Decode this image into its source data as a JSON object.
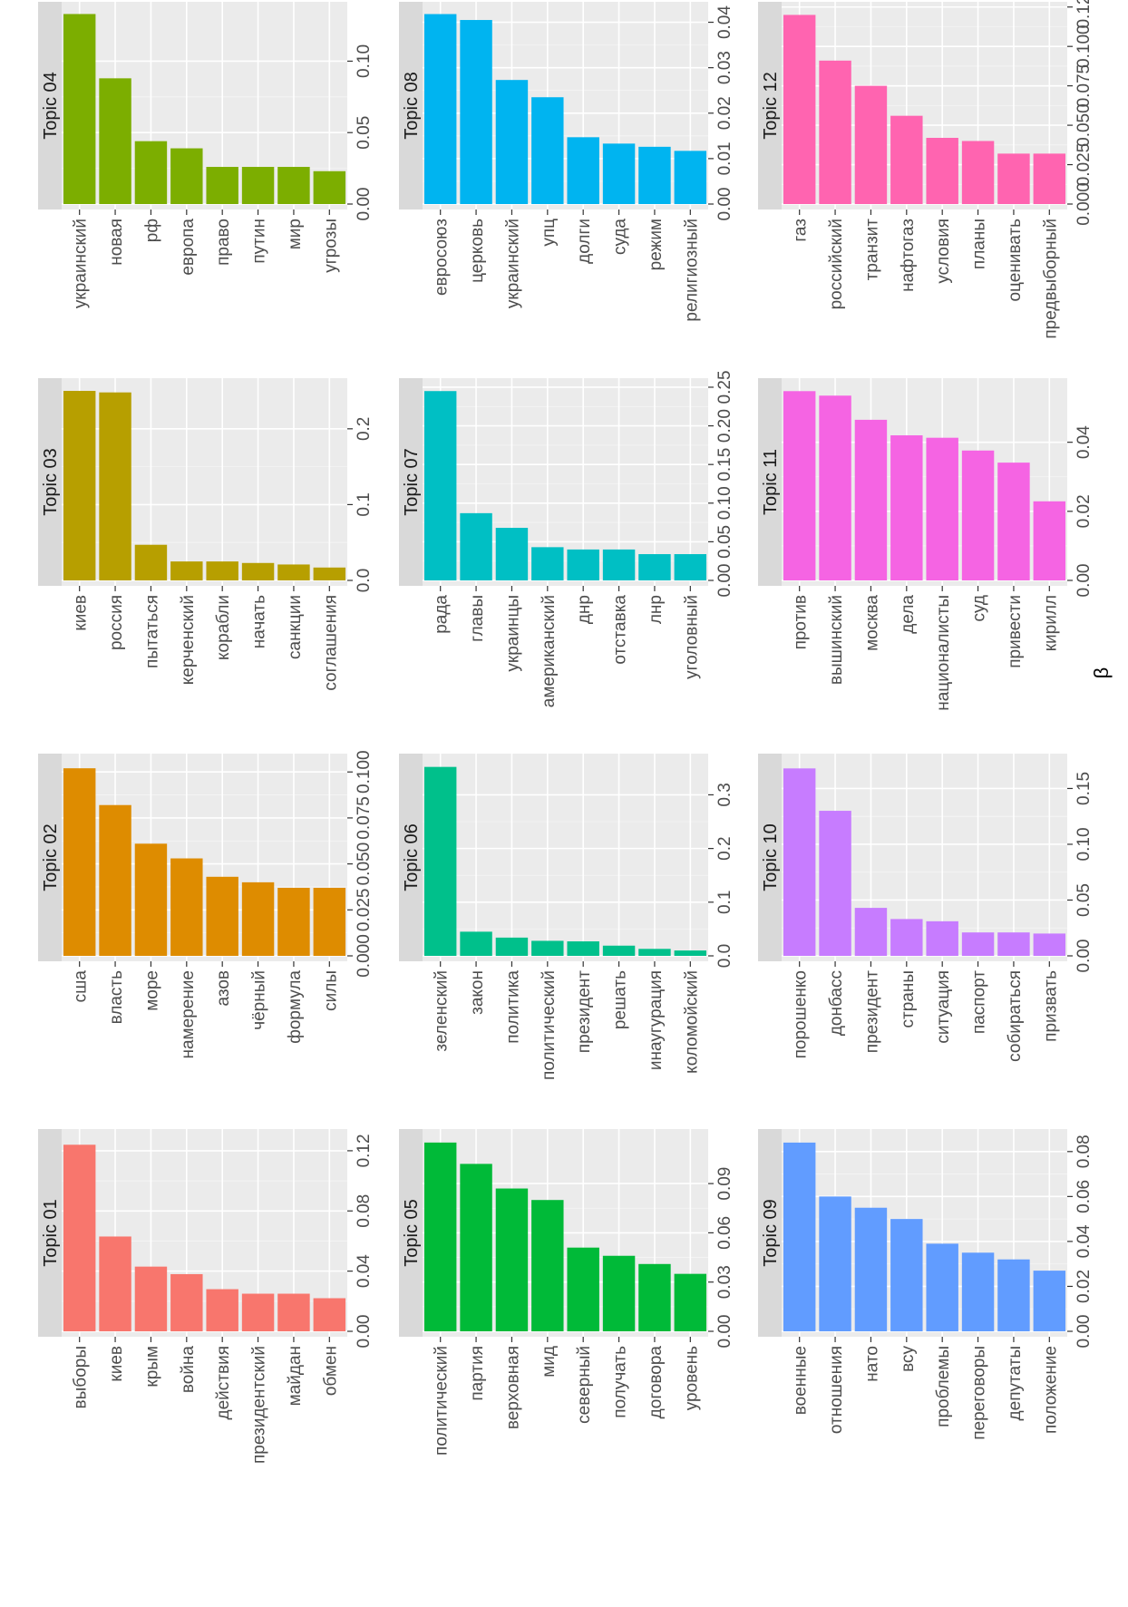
{
  "chart_data": {
    "type": "bar",
    "orientation": "horizontal",
    "layout": "facet grid, 4 columns x 3 rows (figure rotated 90 degrees)",
    "shared_axis_label": "β",
    "panels": [
      {
        "title": "Topic 01",
        "color": "#F8766D",
        "ticks": [
          "0.00",
          "0.04",
          "0.08",
          "0.12"
        ],
        "xlim": [
          0,
          0.132
        ],
        "categories": [
          "выборы",
          "киев",
          "крым",
          "война",
          "действия",
          "президентский",
          "майдан",
          "обмен"
        ],
        "values": [
          0.124,
          0.063,
          0.043,
          0.038,
          0.028,
          0.025,
          0.025,
          0.022
        ]
      },
      {
        "title": "Topic 02",
        "color": "#DE8C00",
        "ticks": [
          "0.000",
          "0.025",
          "0.050",
          "0.075",
          "0.100"
        ],
        "xlim": [
          0,
          0.108
        ],
        "categories": [
          "сша",
          "власть",
          "море",
          "намерение",
          "азов",
          "чёрный",
          "формула",
          "силы"
        ],
        "values": [
          0.102,
          0.082,
          0.061,
          0.053,
          0.043,
          0.04,
          0.037,
          0.037
        ]
      },
      {
        "title": "Topic 03",
        "color": "#B79F00",
        "ticks": [
          "0.0",
          "0.1",
          "0.2"
        ],
        "xlim": [
          0,
          0.262
        ],
        "categories": [
          "киев",
          "россия",
          "пытаться",
          "керченский",
          "корабли",
          "начать",
          "санкции",
          "соглашения"
        ],
        "values": [
          0.25,
          0.248,
          0.047,
          0.025,
          0.025,
          0.023,
          0.021,
          0.017
        ]
      },
      {
        "title": "Topic 04",
        "color": "#7CAE00",
        "ticks": [
          "0.00",
          "0.05",
          "0.10"
        ],
        "xlim": [
          0,
          0.139
        ],
        "categories": [
          "украинский",
          "новая",
          "рф",
          "европа",
          "право",
          "путин",
          "мир",
          "угрозы"
        ],
        "values": [
          0.133,
          0.088,
          0.044,
          0.039,
          0.026,
          0.026,
          0.026,
          0.023
        ]
      },
      {
        "title": "Topic 05",
        "color": "#00BA38",
        "ticks": [
          "0.00",
          "0.03",
          "0.06",
          "0.09"
        ],
        "xlim": [
          0,
          0.121
        ],
        "categories": [
          "политический",
          "партия",
          "верховная",
          "мид",
          "северный",
          "получать",
          "договора",
          "уровень"
        ],
        "values": [
          0.115,
          0.102,
          0.087,
          0.08,
          0.051,
          0.046,
          0.041,
          0.035
        ]
      },
      {
        "title": "Topic 06",
        "color": "#00C08B",
        "ticks": [
          "0.0",
          "0.1",
          "0.2",
          "0.3"
        ],
        "xlim": [
          0,
          0.37
        ],
        "categories": [
          "зеленский",
          "закон",
          "политика",
          "политический",
          "президент",
          "решать",
          "инаугурация",
          "коломойский"
        ],
        "values": [
          0.352,
          0.045,
          0.034,
          0.028,
          0.027,
          0.019,
          0.013,
          0.01
        ]
      },
      {
        "title": "Topic 07",
        "color": "#00BFC4",
        "ticks": [
          "0.00",
          "0.05",
          "0.10",
          "0.15",
          "0.20",
          "0.25"
        ],
        "xlim": [
          0,
          0.257
        ],
        "categories": [
          "рада",
          "главы",
          "украинцы",
          "американский",
          "днр",
          "отставка",
          "лнр",
          "уголовный"
        ],
        "values": [
          0.245,
          0.087,
          0.068,
          0.043,
          0.04,
          0.04,
          0.034,
          0.034
        ]
      },
      {
        "title": "Topic 08",
        "color": "#00B4F0",
        "ticks": [
          "0.00",
          "0.01",
          "0.02",
          "0.03",
          "0.04"
        ],
        "xlim": [
          0,
          0.0437
        ],
        "categories": [
          "евросоюз",
          "церковь",
          "украинский",
          "упц",
          "долги",
          "суда",
          "режим",
          "религиозный"
        ],
        "values": [
          0.0418,
          0.0405,
          0.0273,
          0.0235,
          0.0147,
          0.0133,
          0.0126,
          0.0117
        ]
      },
      {
        "title": "Topic 09",
        "color": "#619CFF",
        "ticks": [
          "0.00",
          "0.02",
          "0.04",
          "0.06",
          "0.08"
        ],
        "xlim": [
          0,
          0.0884
        ],
        "categories": [
          "военные",
          "отношения",
          "нато",
          "всу",
          "проблемы",
          "переговоры",
          "депутаты",
          "положение"
        ],
        "values": [
          0.084,
          0.06,
          0.055,
          0.05,
          0.039,
          0.035,
          0.032,
          0.027
        ]
      },
      {
        "title": "Topic 10",
        "color": "#C77CFF",
        "ticks": [
          "0.00",
          "0.05",
          "0.10",
          "0.15"
        ],
        "xlim": [
          0,
          0.178
        ],
        "categories": [
          "порошенко",
          "донбасс",
          "президент",
          "страны",
          "ситуация",
          "паспорт",
          "собираться",
          "призвать"
        ],
        "values": [
          0.168,
          0.13,
          0.043,
          0.033,
          0.031,
          0.021,
          0.021,
          0.02
        ]
      },
      {
        "title": "Topic 11",
        "color": "#F564E3",
        "ticks": [
          "0.00",
          "0.02",
          "0.04"
        ],
        "xlim": [
          0,
          0.0575
        ],
        "categories": [
          "против",
          "вышинский",
          "москва",
          "дела",
          "националисты",
          "суд",
          "привести",
          "кирилл"
        ],
        "values": [
          0.0548,
          0.0535,
          0.0465,
          0.042,
          0.0413,
          0.0376,
          0.0341,
          0.0229
        ]
      },
      {
        "title": "Topic 12",
        "color": "#FF64B0",
        "ticks": [
          "0.000",
          "0.025",
          "0.050",
          "0.075",
          "0.100",
          "0.125"
        ],
        "xlim": [
          0,
          0.126
        ],
        "categories": [
          "газ",
          "российский",
          "транзит",
          "нафтогаз",
          "условия",
          "планы",
          "оценивать",
          "предвыборный"
        ],
        "values": [
          0.12,
          0.091,
          0.075,
          0.056,
          0.042,
          0.04,
          0.032,
          0.032
        ]
      }
    ]
  }
}
